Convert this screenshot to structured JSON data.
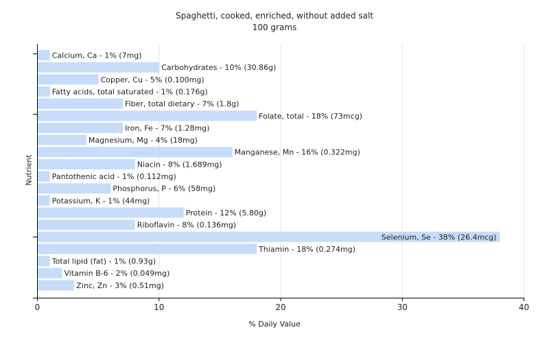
{
  "chart_data": {
    "type": "bar",
    "orientation": "horizontal",
    "title": "Spaghetti, cooked, enriched, without added salt",
    "subtitle": "100 grams",
    "xlabel": "% Daily Value",
    "ylabel": "Nutrient",
    "xlim": [
      0,
      40
    ],
    "xticks": [
      0,
      10,
      20,
      30,
      40
    ],
    "grid": true,
    "bar_color": "#c6dcfa",
    "categories": [
      "Calcium, Ca",
      "Carbohydrates",
      "Copper, Cu",
      "Fatty acids, total saturated",
      "Fiber, total dietary",
      "Folate, total",
      "Iron, Fe",
      "Magnesium, Mg",
      "Manganese, Mn",
      "Niacin",
      "Pantothenic acid",
      "Phosphorus, P",
      "Potassium, K",
      "Protein",
      "Riboflavin",
      "Selenium, Se",
      "Thiamin",
      "Total lipid (fat)",
      "Vitamin B-6",
      "Zinc, Zn"
    ],
    "values": [
      1,
      10,
      5,
      1,
      7,
      18,
      7,
      4,
      16,
      8,
      1,
      6,
      1,
      12,
      8,
      38,
      18,
      1,
      2,
      3
    ],
    "labels": [
      "Calcium, Ca - 1% (7mg)",
      "Carbohydrates - 10% (30.86g)",
      "Copper, Cu - 5% (0.100mg)",
      "Fatty acids, total saturated - 1% (0.176g)",
      "Fiber, total dietary - 7% (1.8g)",
      "Folate, total - 18% (73mcg)",
      "Iron, Fe - 7% (1.28mg)",
      "Magnesium, Mg - 4% (18mg)",
      "Manganese, Mn - 16% (0.322mg)",
      "Niacin - 8% (1.689mg)",
      "Pantothenic acid - 1% (0.112mg)",
      "Phosphorus, P - 6% (58mg)",
      "Potassium, K - 1% (44mg)",
      "Protein - 12% (5.80g)",
      "Riboflavin - 8% (0.136mg)",
      "Selenium, Se - 38% (26.4mcg)",
      "Thiamin - 18% (0.274mg)",
      "Total lipid (fat) - 1% (0.93g)",
      "Vitamin B-6 - 2% (0.049mg)",
      "Zinc, Zn - 3% (0.51mg)"
    ]
  }
}
